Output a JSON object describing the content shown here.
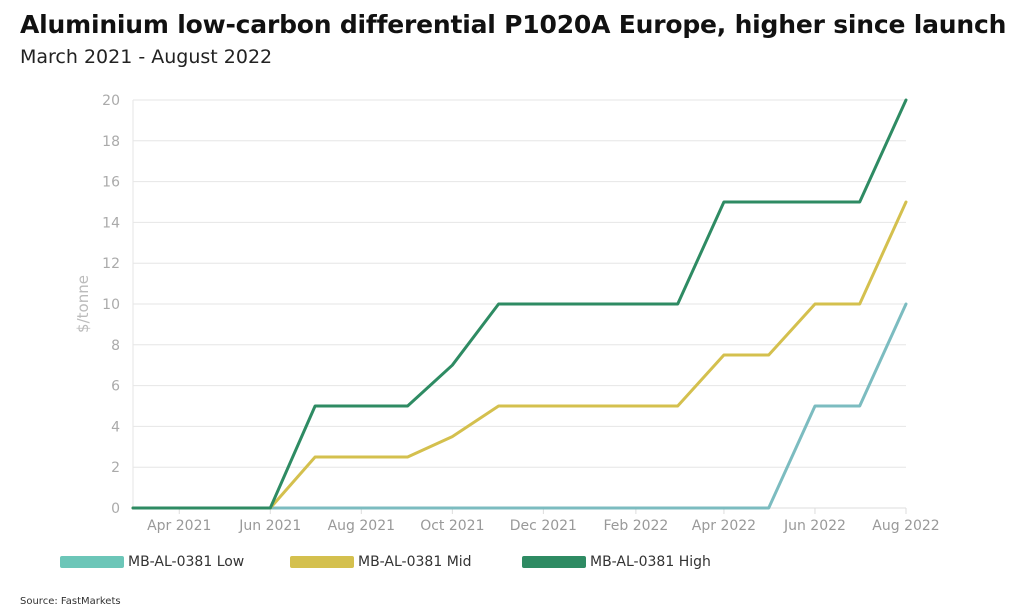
{
  "title": "Aluminium low-carbon differential P1020A Europe, higher since launch",
  "subtitle": "March 2021 - August 2022",
  "source": "Source: FastMarkets",
  "chart_data": {
    "type": "line",
    "ylabel": "$/tonne",
    "ylim": [
      0,
      20
    ],
    "yticks": [
      0,
      2,
      4,
      6,
      8,
      10,
      12,
      14,
      16,
      18,
      20
    ],
    "x": [
      "2021-03-01",
      "2021-04-01",
      "2021-05-01",
      "2021-06-01",
      "2021-07-01",
      "2021-08-01",
      "2021-09-01",
      "2021-10-01",
      "2021-11-01",
      "2021-12-01",
      "2022-01-01",
      "2022-02-01",
      "2022-03-01",
      "2022-04-01",
      "2022-05-01",
      "2022-06-01",
      "2022-07-01",
      "2022-08-01"
    ],
    "xticks": [
      {
        "x": "2021-04-01",
        "label": "Apr 2021"
      },
      {
        "x": "2021-06-01",
        "label": "Jun 2021"
      },
      {
        "x": "2021-08-01",
        "label": "Aug 2021"
      },
      {
        "x": "2021-10-01",
        "label": "Oct 2021"
      },
      {
        "x": "2021-12-01",
        "label": "Dec 2021"
      },
      {
        "x": "2022-02-01",
        "label": "Feb 2022"
      },
      {
        "x": "2022-04-01",
        "label": "Apr 2022"
      },
      {
        "x": "2022-06-01",
        "label": "Jun 2022"
      },
      {
        "x": "2022-08-01",
        "label": "Aug 2022"
      }
    ],
    "grid": true,
    "legend": "bottom",
    "series": [
      {
        "name": "MB-AL-0381 Low",
        "color": "#7cbcc0",
        "legend_color": "#6cc6b8",
        "values": [
          0,
          0,
          0,
          0,
          0,
          0,
          0,
          0,
          0,
          0,
          0,
          0,
          0,
          0,
          0,
          5,
          5,
          10
        ]
      },
      {
        "name": "MB-AL-0381 Mid",
        "color": "#d4c04e",
        "legend_color": "#d4c04e",
        "values": [
          0,
          0,
          0,
          0,
          2.5,
          2.5,
          2.5,
          3.5,
          5,
          5,
          5,
          5,
          5,
          7.5,
          7.5,
          10,
          10,
          15
        ]
      },
      {
        "name": "MB-AL-0381 High",
        "color": "#2e8b63",
        "legend_color": "#2e8b63",
        "values": [
          0,
          0,
          0,
          0,
          5,
          5,
          5,
          7,
          10,
          10,
          10,
          10,
          10,
          15,
          15,
          15,
          15,
          20
        ]
      }
    ]
  }
}
